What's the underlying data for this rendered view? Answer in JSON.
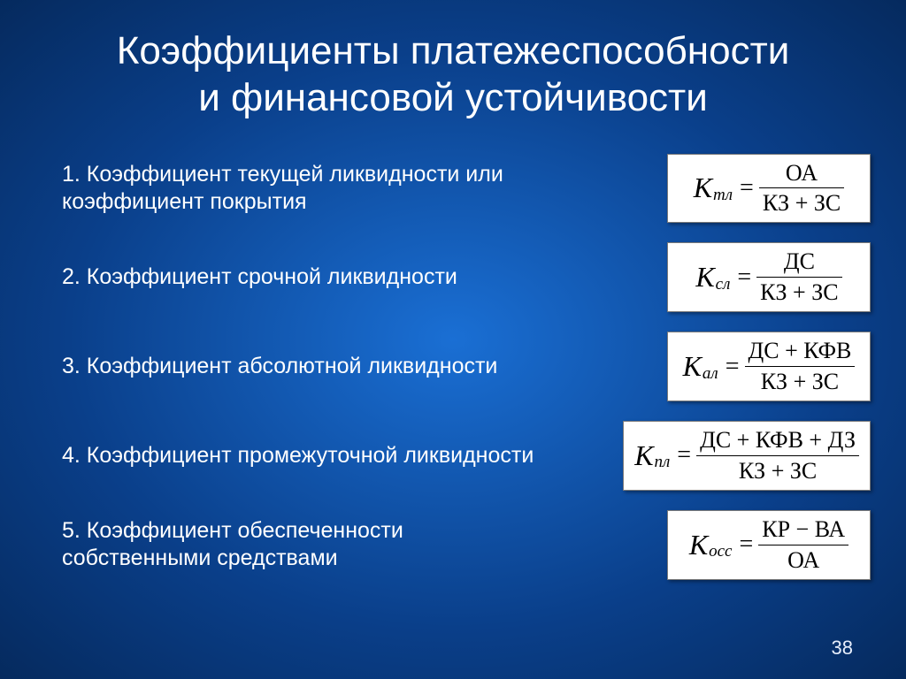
{
  "background_colors": {
    "center": "#1a6fd4",
    "mid": "#0a3f8a",
    "edge": "#052a5e"
  },
  "text_color": "#ffffff",
  "formula_bg": "#ffffff",
  "formula_text": "#000000",
  "formula_border": "#7a7a7a",
  "title_line1": "Коэффициенты платежеспособности",
  "title_line2": "и финансовой устойчивости",
  "title_fontsize": 44,
  "label_fontsize": 25,
  "formula_fontsize": 26,
  "items": [
    {
      "label": "1.  Коэффициент текущей ликвидности или коэффициент покрытия",
      "k_sub": "тл",
      "numerator": "ОА",
      "denominator": "КЗ + ЗС"
    },
    {
      "label": "2. Коэффициент срочной ликвидности",
      "k_sub": "сл",
      "numerator": "ДС",
      "denominator": "КЗ + ЗС"
    },
    {
      "label": "3. Коэффициент абсолютной ликвидности",
      "k_sub": "ал",
      "numerator": "ДС + КФВ",
      "denominator": "КЗ + ЗС"
    },
    {
      "label": "4. Коэффициент промежуточной ликвидности",
      "k_sub": "пл",
      "numerator": "ДС + КФВ + ДЗ",
      "denominator": "КЗ + ЗС"
    },
    {
      "label": "5. Коэффициент обеспеченности собственными средствами",
      "k_sub": "осс",
      "numerator": "КР − ВА",
      "denominator": "ОА"
    }
  ],
  "page_number": "38"
}
